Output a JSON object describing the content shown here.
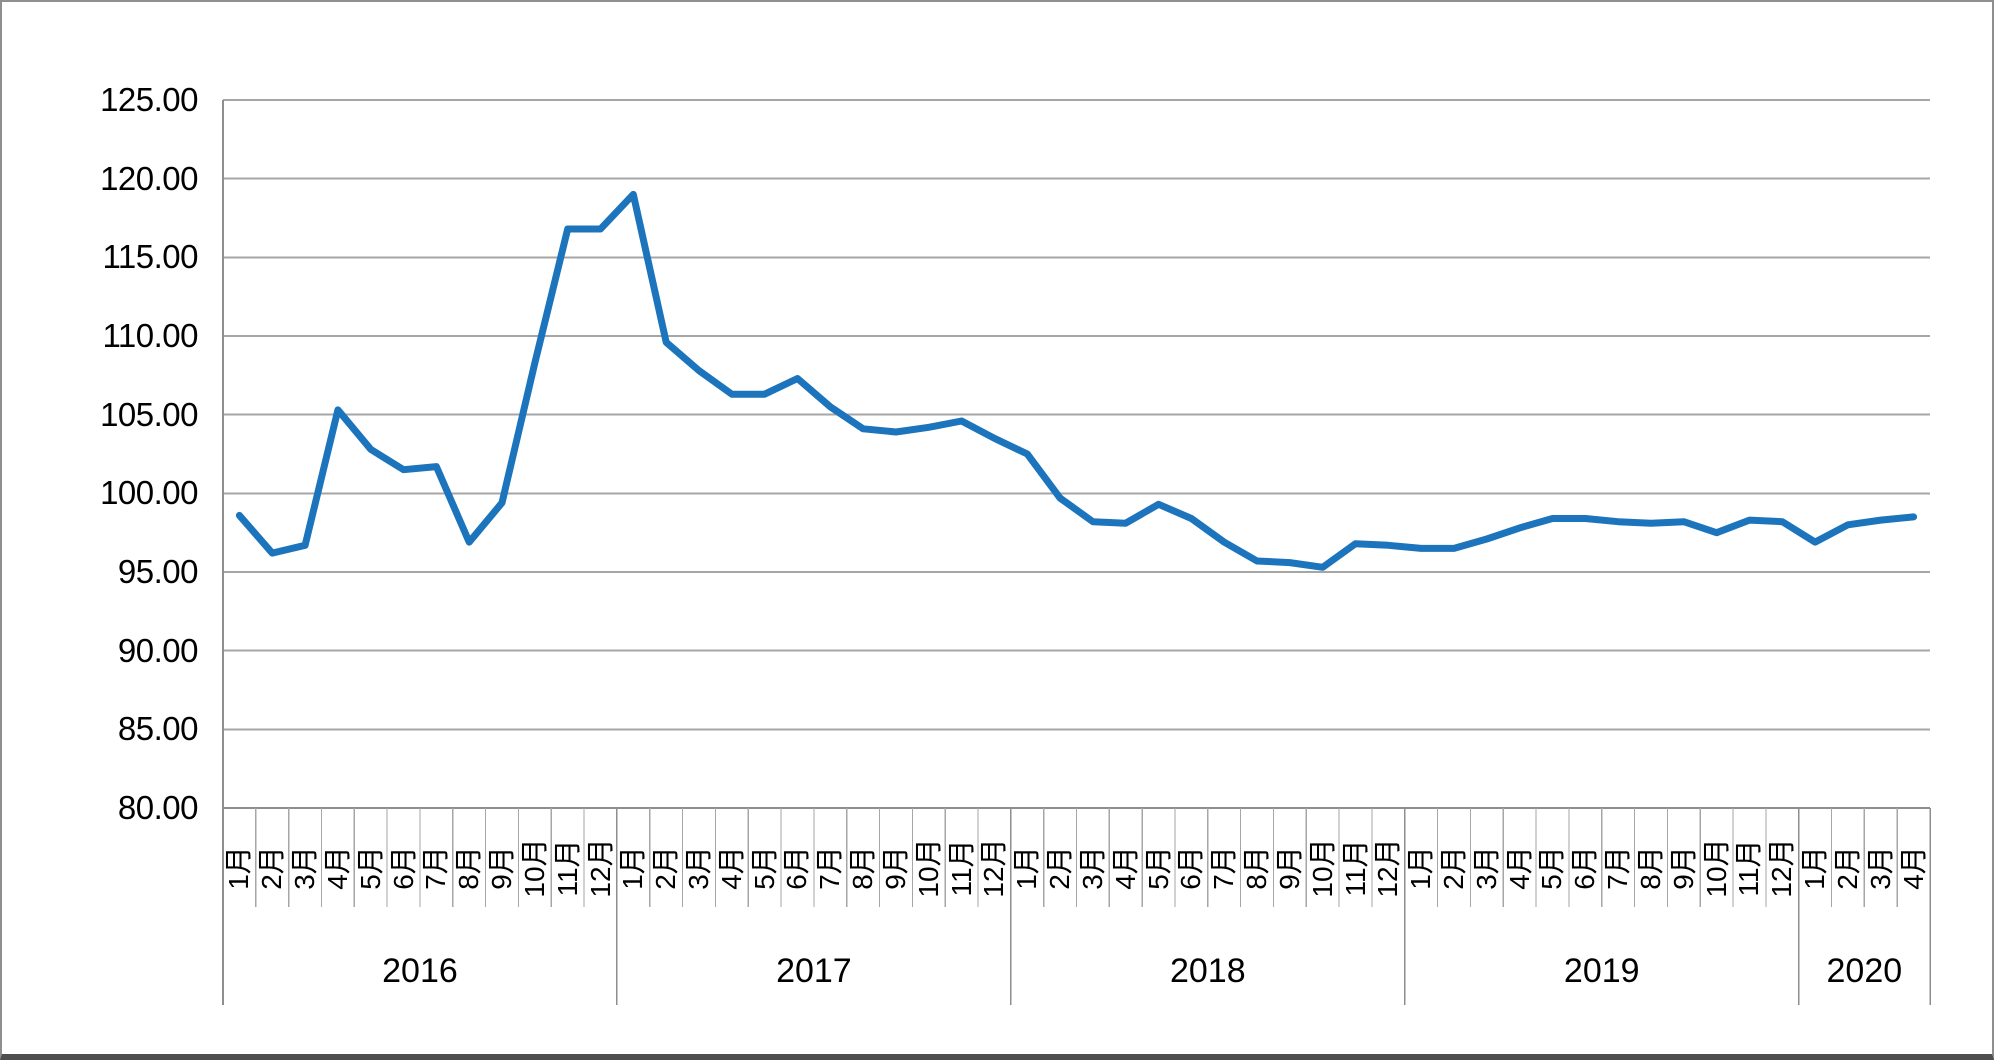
{
  "chart_data": {
    "type": "line",
    "title": "",
    "legend": "none",
    "grid": true,
    "y_axis": {
      "min": 80,
      "max": 125,
      "step": 5,
      "tick_labels": [
        "125.00",
        "120.00",
        "115.00",
        "110.00",
        "105.00",
        "100.00",
        "95.00",
        "90.00",
        "85.00",
        "80.00"
      ]
    },
    "x_axis": {
      "years": [
        {
          "label": "2016",
          "month_labels": [
            "1月",
            "2月",
            "3月",
            "4月",
            "5月",
            "6月",
            "7月",
            "8月",
            "9月",
            "10月",
            "11月",
            "12月"
          ],
          "values": [
            98.6,
            96.2,
            96.7,
            105.3,
            102.8,
            101.5,
            101.7,
            96.9,
            99.4,
            108.3,
            116.8,
            116.8
          ]
        },
        {
          "label": "2017",
          "month_labels": [
            "1月",
            "2月",
            "3月",
            "4月",
            "5月",
            "6月",
            "7月",
            "8月",
            "9月",
            "10月",
            "11月",
            "12月"
          ],
          "values": [
            119.0,
            109.6,
            107.8,
            106.3,
            106.3,
            107.3,
            105.5,
            104.1,
            103.9,
            104.2,
            104.6,
            103.5
          ]
        },
        {
          "label": "2018",
          "month_labels": [
            "1月",
            "2月",
            "3月",
            "4月",
            "5月",
            "6月",
            "7月",
            "8月",
            "9月",
            "10月",
            "11月",
            "12月"
          ],
          "values": [
            102.5,
            99.7,
            98.2,
            98.1,
            99.3,
            98.4,
            96.9,
            95.7,
            95.6,
            95.3,
            96.8,
            96.7
          ]
        },
        {
          "label": "2019",
          "month_labels": [
            "1月",
            "2月",
            "3月",
            "4月",
            "5月",
            "6月",
            "7月",
            "8月",
            "9月",
            "10月",
            "11月",
            "12月"
          ],
          "values": [
            96.5,
            96.5,
            97.1,
            97.8,
            98.4,
            98.4,
            98.2,
            98.1,
            98.2,
            97.5,
            98.3,
            98.2
          ]
        },
        {
          "label": "2020",
          "month_labels": [
            "1月",
            "2月",
            "3月",
            "4月"
          ],
          "values": [
            96.9,
            98.0,
            98.3,
            98.5
          ]
        }
      ]
    },
    "series": [
      {
        "name": "",
        "color": "#1b74bc",
        "stroke_width": 7
      }
    ],
    "colors": {
      "series_line": "#1b74bc",
      "gridline": "#a6a6a6",
      "axis_line": "#8e8e8e",
      "tick_line": "#a6a6a6",
      "frame_border": "#8f8f8f",
      "frame_bottom": "#4e4e4e",
      "text": "#000000",
      "background": "#ffffff"
    }
  }
}
